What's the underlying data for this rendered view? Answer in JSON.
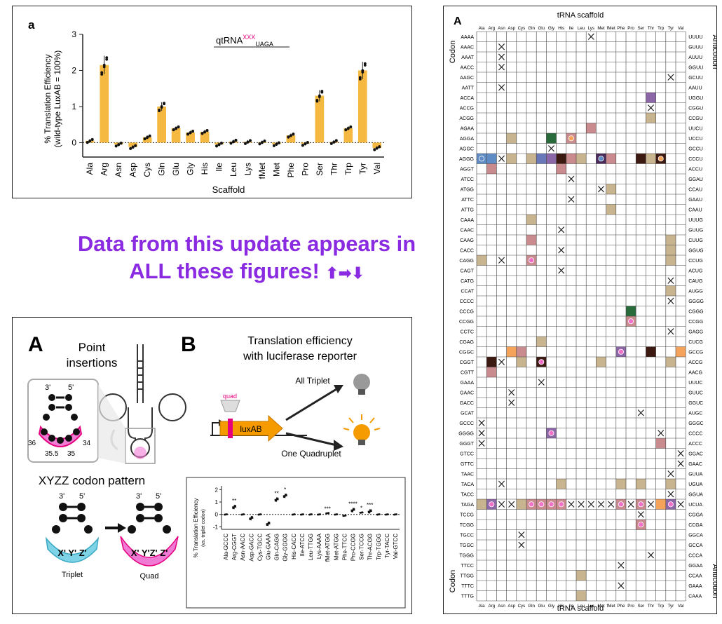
{
  "colors": {
    "bar": "#f5b942",
    "pink": "#e6007e",
    "quad_pink": "#f07bd5",
    "triplet_blue": "#7fd3e6",
    "banner": "#8a2be2",
    "bulb_orange": "#f59b00"
  },
  "banner": {
    "line1": "Data from this update appears in",
    "line2": "ALL these figures!",
    "arrows": "⬆➡⬇"
  },
  "panel_a": {
    "letter": "a",
    "qt_base": "qtRNA",
    "qt_sup": "XXX",
    "qt_sub": "UAGA",
    "ylabel1": "% Translation Efficiency",
    "ylabel2": "(wild-type LuxAB = 100%)",
    "xlabel": "Scaffold",
    "yticks": [
      "0",
      "1",
      "2",
      "3"
    ]
  },
  "chart_data": [
    {
      "type": "bar",
      "categories": [
        "Ala",
        "Arg",
        "Asn",
        "Asp",
        "Cys",
        "Gln",
        "Glu",
        "Gly",
        "His",
        "Ile",
        "Leu",
        "Lys",
        "fMet",
        "Met",
        "Phe",
        "Pro",
        "Ser",
        "Thr",
        "Trp",
        "Tyr",
        "Val"
      ],
      "values": [
        0.05,
        2.15,
        -0.05,
        -0.12,
        0.15,
        1.0,
        0.4,
        0.28,
        0.3,
        -0.05,
        0.03,
        0.02,
        0.01,
        -0.04,
        0.2,
        -0.03,
        1.3,
        0.02,
        0.4,
        2.0,
        -0.15
      ],
      "xlabel": "Scaffold",
      "ylabel": "% Translation Efficiency (wild-type LuxAB = 100%)",
      "ylim": [
        -0.4,
        3
      ]
    },
    {
      "type": "scatter",
      "categories": [
        "Ala-GCCC",
        "Arg-CGGT",
        "Asn-AACC",
        "Asp-GACC",
        "Cys-TGCC",
        "Glu-GAAA",
        "Gln-CAGG",
        "Gly-GGGG",
        "His-CACC",
        "Ile-ATCC",
        "Leu-TTGG",
        "Lys-AAAA",
        "fMet-ATGG",
        "Met-ATGG",
        "Phe-TTCC",
        "Pro-CCGG",
        "Ser-TCCG",
        "Thr-ACGG",
        "Trp-TGGG",
        "Tyr-TACC",
        "Val-GTCC"
      ],
      "values": [
        0.0,
        0.6,
        0.0,
        -0.3,
        0.0,
        -0.75,
        1.2,
        1.5,
        0.0,
        0.0,
        0.0,
        0.0,
        0.1,
        0.0,
        -0.1,
        0.35,
        0.15,
        0.25,
        0.0,
        0.0,
        0.0
      ],
      "stars": [
        "",
        "**",
        "",
        "",
        "",
        "",
        "**",
        "*",
        "",
        "",
        "",
        "",
        "***",
        "",
        "",
        "****",
        "*",
        "***",
        "",
        "",
        ""
      ],
      "ylabel": "% Translation Efficiency (vs. triplet codon)",
      "ylim": [
        -1.2,
        2.3
      ]
    }
  ],
  "panel_b": {
    "letter_a": "A",
    "letter_b": "B",
    "point_insertions": "Point\ninsertions",
    "pos": [
      "3'",
      "5'",
      "36",
      "34",
      "35.5",
      "35"
    ],
    "xyzz_title": "XYZZ codon pattern",
    "triplet_codon": "X' Y' Z'",
    "quad_codon": "X' Y'Z' Z'",
    "triplet_label": "Triplet",
    "quad_label": "Quad",
    "b_title1": "Translation efficiency",
    "b_title2": "with luciferase reporter",
    "quad_tag": "quad",
    "luxab": "luxAB",
    "all_triplet": "All Triplet",
    "one_quad": "One Quadruplet",
    "inner_ylabel1": "% Translation Efficiency",
    "inner_ylabel2": "(vs. triplet codon)",
    "yticks": [
      "2",
      "1",
      "0",
      "-1"
    ]
  },
  "grid": {
    "letter": "A",
    "title_top": "tRNA scaffold",
    "title_bottom": "tRNA scaffold",
    "side_left": "Codon",
    "side_right": "Anticodon",
    "cols": [
      "Ala",
      "Arg",
      "Asn",
      "Asp",
      "Cys",
      "Gln",
      "Glu",
      "Gly",
      "His",
      "Ile",
      "Leu",
      "Lys",
      "Met",
      "fMet",
      "Phe",
      "Pro",
      "Ser",
      "Thr",
      "Trp",
      "Tyr",
      "Val"
    ],
    "codons": [
      "AAAA",
      "AAAC",
      "AAAT",
      "AACC",
      "AAGC",
      "AATT",
      "ACCA",
      "ACCG",
      "ACGG",
      "AGAA",
      "AGGA",
      "AGGC",
      "AGGG",
      "AGGT",
      "ATCC",
      "ATGG",
      "ATTC",
      "ATTG",
      "CAAA",
      "CAAC",
      "CAAG",
      "CACC",
      "CAGG",
      "CAGT",
      "CATG",
      "CCAT",
      "CCCC",
      "CCCG",
      "CCGG",
      "CCTC",
      "CGAG",
      "CGGC",
      "CGGT",
      "CGTT",
      "GAAA",
      "GAAC",
      "GACC",
      "GCAT",
      "GCCC",
      "GGGG",
      "GGGT",
      "GTCC",
      "GTTC",
      "TAAC",
      "TACA",
      "TACC",
      "TAGA",
      "TCCG",
      "TCGG",
      "TGCC",
      "TGGC",
      "TGGG",
      "TTCC",
      "TTGG",
      "TTTC",
      "TTTG"
    ],
    "anticodons": [
      "UUUU",
      "GUUU",
      "AUUU",
      "GGUU",
      "GCUU",
      "AAUU",
      "UGGU",
      "CGGU",
      "CCGU",
      "UUCU",
      "UCCU",
      "GCCU",
      "CCCU",
      "ACCU",
      "GGAU",
      "CCAU",
      "GAAU",
      "CAAU",
      "UUUG",
      "GUUG",
      "CUUG",
      "GGUG",
      "CCUG",
      "ACUG",
      "CAUG",
      "AUGG",
      "GGGG",
      "CGGG",
      "CCGG",
      "GAGG",
      "CUCG",
      "GCCG",
      "ACCG",
      "AACG",
      "UUUC",
      "GUUC",
      "GGUC",
      "AUGC",
      "GGGC",
      "CCCC",
      "ACCC",
      "GGAC",
      "GAAC",
      "GUUA",
      "UGUA",
      "GGUA",
      "UCUA",
      "CGGA",
      "CCGA",
      "GGCA",
      "GCCA",
      "CCCA",
      "GGAA",
      "CCAA",
      "GAAA",
      "CAAA"
    ],
    "cells": [
      [
        0,
        11,
        "x"
      ],
      [
        1,
        2,
        "x"
      ],
      [
        2,
        2,
        "x"
      ],
      [
        3,
        2,
        "x"
      ],
      [
        4,
        19,
        "x"
      ],
      [
        5,
        2,
        "x"
      ],
      [
        6,
        17,
        "purple"
      ],
      [
        7,
        17,
        "x"
      ],
      [
        8,
        17,
        "tan"
      ],
      [
        9,
        11,
        "rose"
      ],
      [
        10,
        3,
        "tan"
      ],
      [
        10,
        7,
        "dgreen"
      ],
      [
        10,
        9,
        "rose",
        "orange"
      ],
      [
        11,
        7,
        "x"
      ],
      [
        12,
        0,
        "lblue",
        "lblue"
      ],
      [
        12,
        1,
        "lblue"
      ],
      [
        12,
        2,
        "x"
      ],
      [
        12,
        3,
        "tan"
      ],
      [
        12,
        5,
        "tan"
      ],
      [
        12,
        6,
        "blue"
      ],
      [
        12,
        7,
        "purple"
      ],
      [
        12,
        8,
        "dbrown"
      ],
      [
        12,
        9,
        "rose"
      ],
      [
        12,
        10,
        "tan"
      ],
      [
        12,
        12,
        "dpurple",
        "lblue"
      ],
      [
        12,
        13,
        "rose"
      ],
      [
        12,
        16,
        "dbrown"
      ],
      [
        12,
        17,
        "tan"
      ],
      [
        12,
        18,
        "dbrown",
        "orange"
      ],
      [
        13,
        1,
        "rose"
      ],
      [
        13,
        8,
        "rose"
      ],
      [
        14,
        9,
        "x"
      ],
      [
        15,
        12,
        "x"
      ],
      [
        15,
        13,
        "tan"
      ],
      [
        16,
        9,
        "x"
      ],
      [
        17,
        13,
        "tan"
      ],
      [
        18,
        5,
        "tan"
      ],
      [
        19,
        8,
        "x"
      ],
      [
        20,
        5,
        "rose"
      ],
      [
        20,
        19,
        "tan"
      ],
      [
        21,
        8,
        "x"
      ],
      [
        21,
        19,
        "tan"
      ],
      [
        22,
        0,
        "tan"
      ],
      [
        22,
        2,
        "x"
      ],
      [
        22,
        5,
        "rose",
        "pink"
      ],
      [
        22,
        19,
        "tan"
      ],
      [
        23,
        8,
        "x"
      ],
      [
        24,
        19,
        "x"
      ],
      [
        25,
        19,
        "tan"
      ],
      [
        26,
        19,
        "x"
      ],
      [
        27,
        15,
        "dgreen"
      ],
      [
        28,
        15,
        "rose",
        "pink"
      ],
      [
        29,
        19,
        "x"
      ],
      [
        30,
        6,
        "tan"
      ],
      [
        31,
        3,
        "orange"
      ],
      [
        31,
        4,
        "rose"
      ],
      [
        31,
        14,
        "purple",
        "pink"
      ],
      [
        31,
        17,
        "dbrown"
      ],
      [
        31,
        20,
        "orange"
      ],
      [
        32,
        1,
        "dbrown"
      ],
      [
        32,
        2,
        "x"
      ],
      [
        32,
        4,
        "tan"
      ],
      [
        32,
        6,
        "dbrown",
        "pink"
      ],
      [
        32,
        12,
        "tan"
      ],
      [
        32,
        19,
        "tan"
      ],
      [
        33,
        1,
        "rose"
      ],
      [
        34,
        6,
        "x"
      ],
      [
        35,
        3,
        "x"
      ],
      [
        36,
        3,
        "x"
      ],
      [
        37,
        16,
        "x"
      ],
      [
        38,
        0,
        "x"
      ],
      [
        39,
        0,
        "x"
      ],
      [
        39,
        7,
        "purple",
        "pink"
      ],
      [
        39,
        18,
        "x"
      ],
      [
        40,
        0,
        "x"
      ],
      [
        40,
        18,
        "rose"
      ],
      [
        41,
        20,
        "x"
      ],
      [
        42,
        20,
        "x"
      ],
      [
        43,
        19,
        "x"
      ],
      [
        44,
        2,
        "x"
      ],
      [
        44,
        8,
        "tan"
      ],
      [
        44,
        14,
        "tan"
      ],
      [
        44,
        16,
        "tan"
      ],
      [
        44,
        19,
        "tan"
      ],
      [
        45,
        19,
        "x"
      ],
      [
        46,
        0,
        "tan"
      ],
      [
        46,
        1,
        "purple",
        "pink"
      ],
      [
        46,
        2,
        "x"
      ],
      [
        46,
        3,
        "x"
      ],
      [
        46,
        4,
        "tan"
      ],
      [
        46,
        5,
        "rose",
        "pink"
      ],
      [
        46,
        6,
        "rose",
        "pink"
      ],
      [
        46,
        7,
        "rose",
        "pink"
      ],
      [
        46,
        8,
        "rose",
        "pink"
      ],
      [
        46,
        9,
        "x"
      ],
      [
        46,
        10,
        "x"
      ],
      [
        46,
        11,
        "x"
      ],
      [
        46,
        12,
        "x"
      ],
      [
        46,
        13,
        "x"
      ],
      [
        46,
        14,
        "rose",
        "pink"
      ],
      [
        46,
        15,
        "x"
      ],
      [
        46,
        16,
        "rose",
        "pink"
      ],
      [
        46,
        17,
        "x"
      ],
      [
        46,
        18,
        "orange"
      ],
      [
        46,
        19,
        "purple",
        "pink"
      ],
      [
        46,
        20,
        "x"
      ],
      [
        47,
        16,
        "x"
      ],
      [
        48,
        16,
        "rose",
        "pink"
      ],
      [
        49,
        4,
        "x"
      ],
      [
        50,
        4,
        "x"
      ],
      [
        51,
        17,
        "x"
      ],
      [
        52,
        14,
        "x"
      ],
      [
        53,
        10,
        "tan"
      ],
      [
        54,
        14,
        "x"
      ],
      [
        55,
        10,
        "tan"
      ]
    ]
  }
}
